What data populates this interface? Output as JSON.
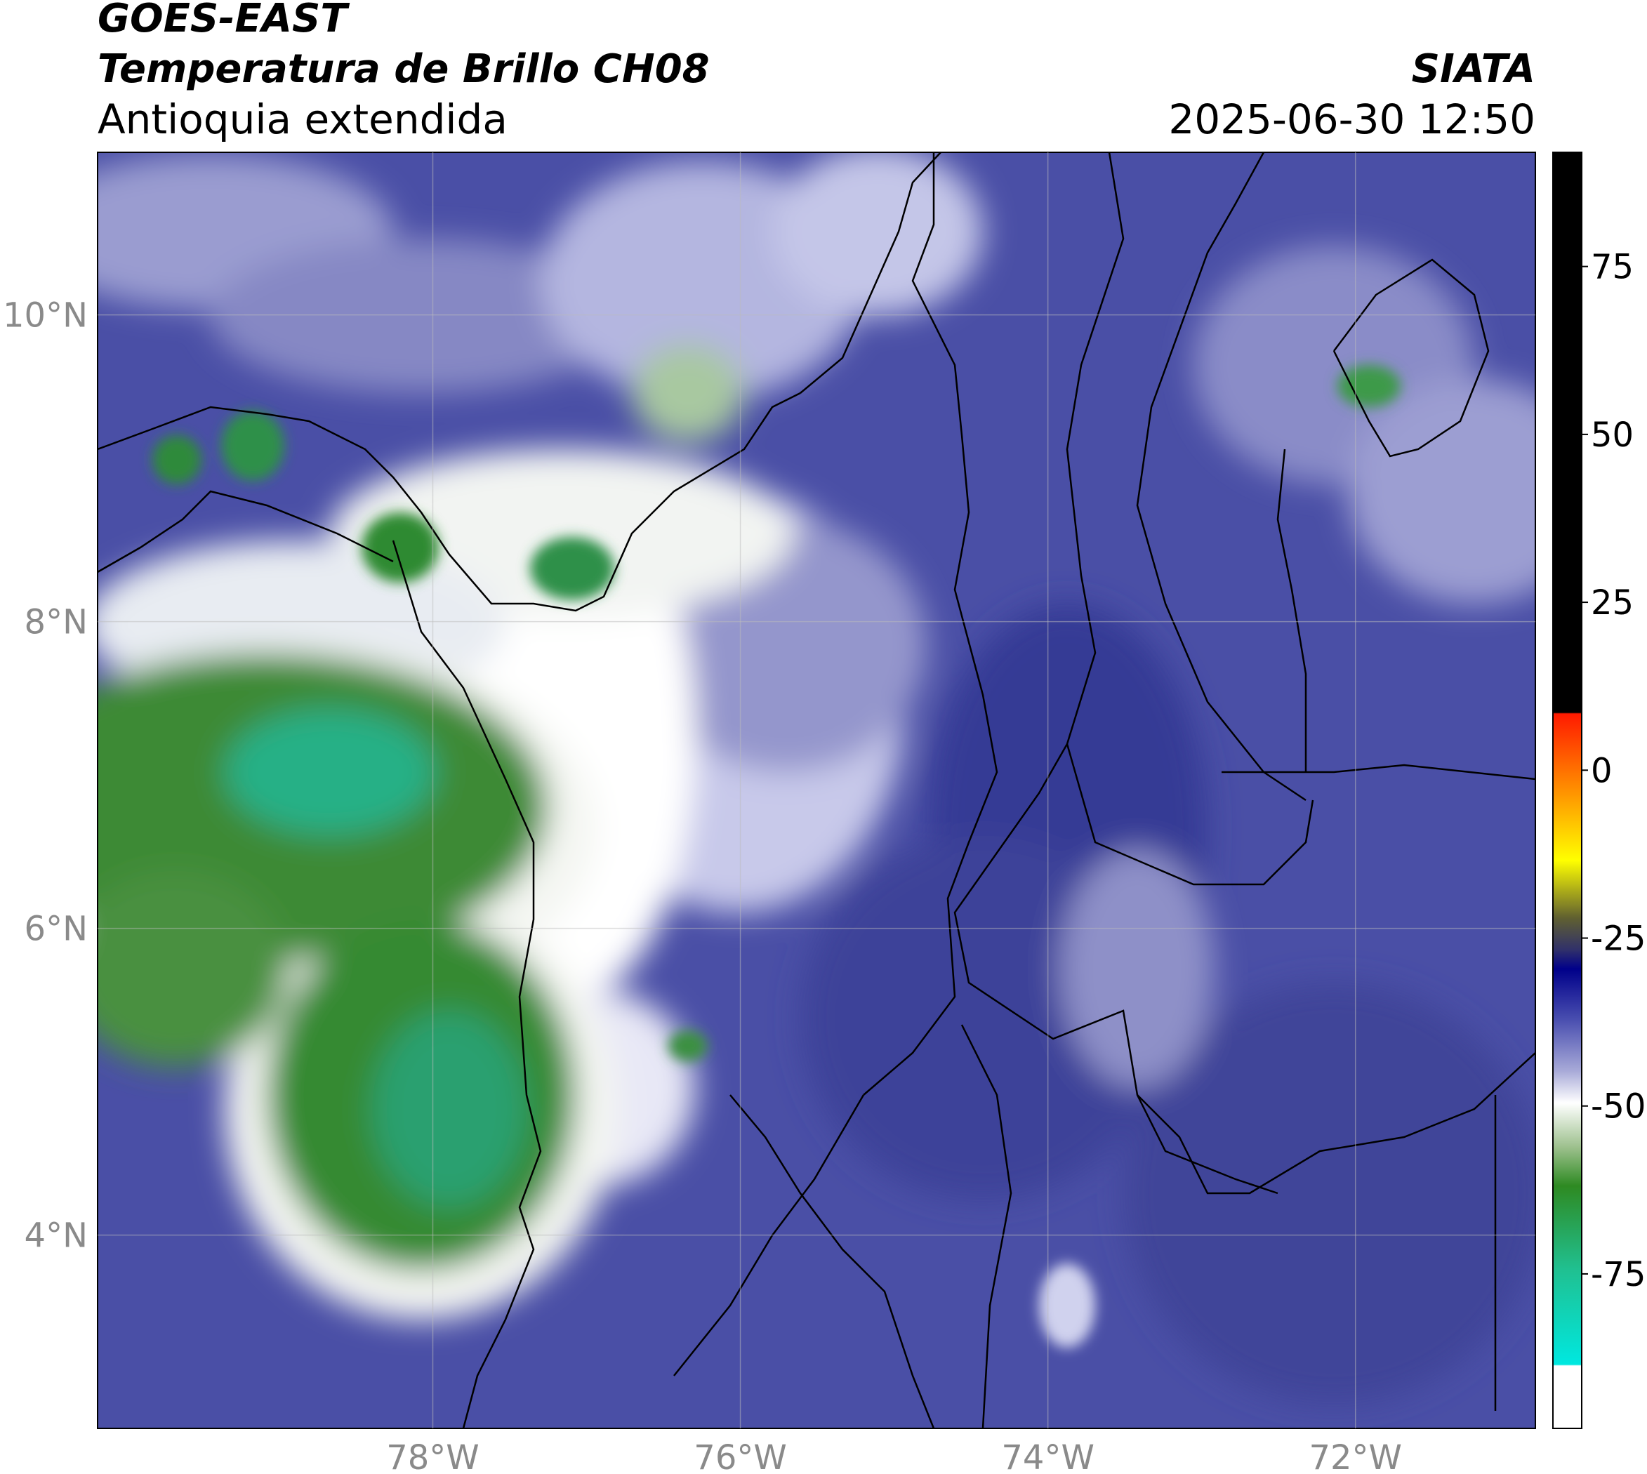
{
  "header": {
    "title_line1": "GOES-EAST",
    "title_line2": "Temperatura de Brillo CH08",
    "region": "Antioquia extendida",
    "source": "SIATA",
    "timestamp": "2025-06-30 12:50"
  },
  "map": {
    "xlim": [
      -80.18,
      -70.83
    ],
    "ylim": [
      2.74,
      11.06
    ],
    "xticks": [
      {
        "value": -78,
        "label": "78°W"
      },
      {
        "value": -76,
        "label": "76°W"
      },
      {
        "value": -74,
        "label": "74°W"
      },
      {
        "value": -72,
        "label": "72°W"
      }
    ],
    "yticks": [
      {
        "value": 4,
        "label": "4°N"
      },
      {
        "value": 6,
        "label": "6°N"
      },
      {
        "value": 8,
        "label": "8°N"
      },
      {
        "value": 10,
        "label": "10°N"
      }
    ]
  },
  "colorbar": {
    "lim": [
      -98,
      92
    ],
    "ticks": [
      -75,
      -50,
      -25,
      0,
      25,
      50,
      75
    ]
  }
}
